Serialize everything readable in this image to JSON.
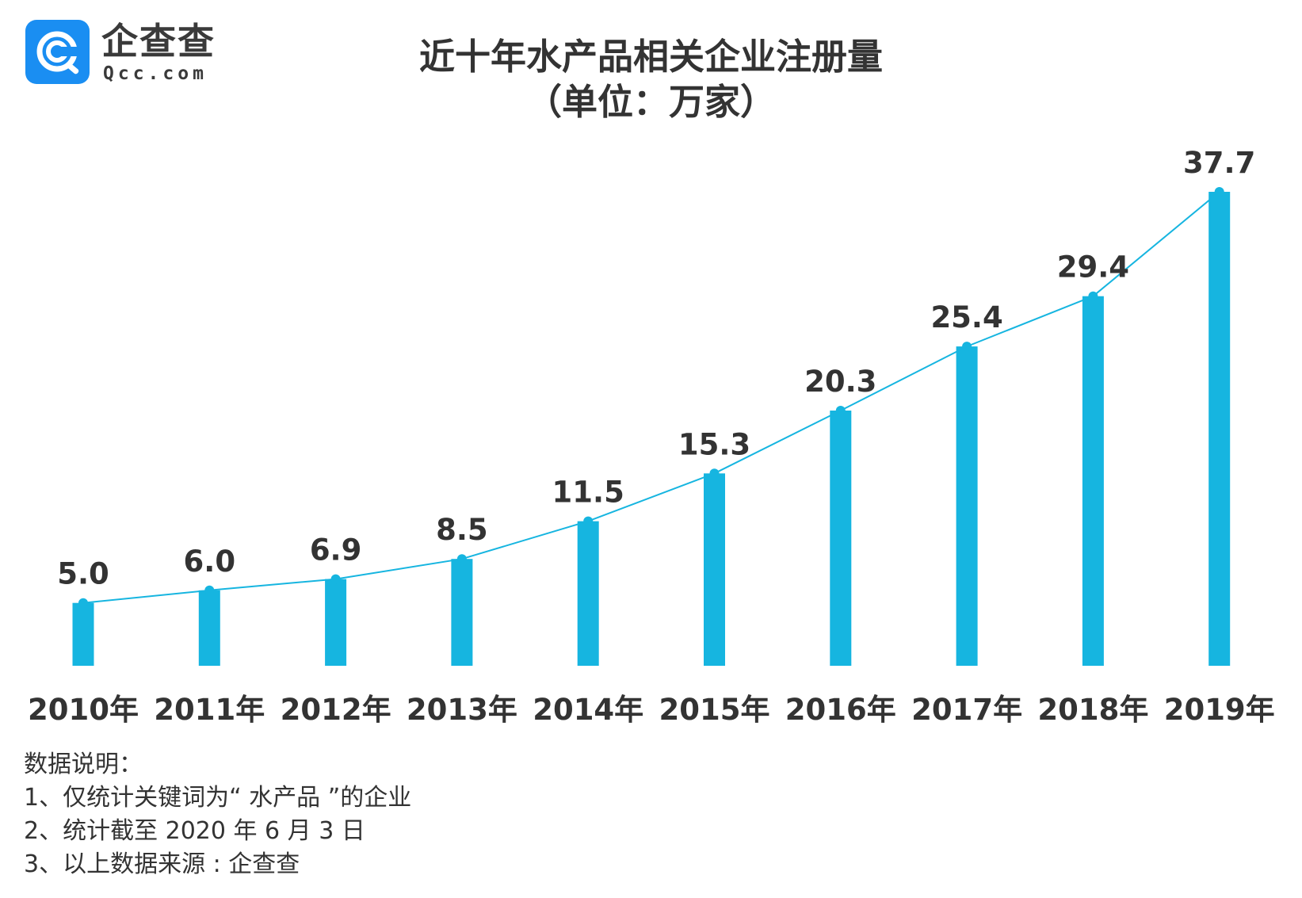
{
  "logo": {
    "name_cn": "企查查",
    "name_en": "Qcc.com",
    "brand_color": "#1a8ef2"
  },
  "title": {
    "main": "近十年水产品相关企业注册量",
    "unit": "（单位：万家）"
  },
  "colors": {
    "bar": "#16b5e0",
    "line": "#16b5e0",
    "text": "#333333"
  },
  "chart_data": {
    "type": "bar",
    "title": "近十年水产品相关企业注册量",
    "subtitle": "（单位：万家）",
    "categories": [
      "2010年",
      "2011年",
      "2012年",
      "2013年",
      "2014年",
      "2015年",
      "2016年",
      "2017年",
      "2018年",
      "2019年"
    ],
    "values": [
      5.0,
      6.0,
      6.9,
      8.5,
      11.5,
      15.3,
      20.3,
      25.4,
      29.4,
      37.7
    ],
    "labels": [
      "5.0",
      "6.0",
      "6.9",
      "8.5",
      "11.5",
      "15.3",
      "20.3",
      "25.4",
      "29.4",
      "37.7"
    ],
    "overlay": "line",
    "xlabel": "",
    "ylabel": "",
    "ylim": [
      0,
      40
    ],
    "grid": false,
    "legend": "none"
  },
  "notes": {
    "heading": "数据说明：",
    "items": [
      "1、仅统计关键词为“ 水产品 ”的企业",
      "2、统计截至 2020 年 6 月 3 日",
      "3、以上数据来源 : 企查查"
    ]
  }
}
